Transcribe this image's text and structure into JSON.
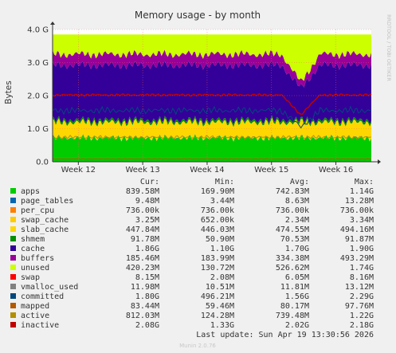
{
  "chart_data": {
    "type": "area",
    "title": "Memory usage - by month",
    "ylabel": "Bytes",
    "watermark": "RRDTOOL / TOBI OETIKER",
    "footer": "Munin 2.0.76",
    "last_update": "Last update: Sun Apr 19 13:30:56 2026",
    "ylim": [
      0,
      4.0
    ],
    "yunit": "G",
    "yticks": [
      {
        "value": 0.0,
        "label": "0.0"
      },
      {
        "value": 1.0,
        "label": "1.0 G"
      },
      {
        "value": 2.0,
        "label": "2.0 G"
      },
      {
        "value": 3.0,
        "label": "3.0 G"
      },
      {
        "value": 4.0,
        "label": "4.0 G"
      }
    ],
    "x_range": [
      11.6,
      16.55
    ],
    "xticks": [
      {
        "value": 12,
        "label": "Week 12"
      },
      {
        "value": 13,
        "label": "Week 13"
      },
      {
        "value": 14,
        "label": "Week 14"
      },
      {
        "value": 15,
        "label": "Week 15"
      },
      {
        "value": 16,
        "label": "Week 16"
      }
    ],
    "column_headers": [
      "Cur:",
      "Min:",
      "Avg:",
      "Max:"
    ],
    "series": [
      {
        "name": "apps",
        "color": "#00cc00",
        "cur": "839.58M",
        "min": "169.90M",
        "avg": "742.83M",
        "max": "1.14G"
      },
      {
        "name": "page_tables",
        "color": "#0066b3",
        "cur": "9.48M",
        "min": "3.44M",
        "avg": "8.63M",
        "max": "13.28M"
      },
      {
        "name": "per_cpu",
        "color": "#ff8000",
        "cur": "736.00k",
        "min": "736.00k",
        "avg": "736.00k",
        "max": "736.00k"
      },
      {
        "name": "swap_cache",
        "color": "#ffcc00",
        "cur": "3.25M",
        "min": "652.00k",
        "avg": "2.34M",
        "max": "3.34M"
      },
      {
        "name": "slab_cache",
        "color": "#ffd700",
        "cur": "447.84M",
        "min": "446.03M",
        "avg": "474.55M",
        "max": "494.16M"
      },
      {
        "name": "shmem",
        "color": "#008f00",
        "cur": "91.78M",
        "min": "50.90M",
        "avg": "70.53M",
        "max": "91.87M"
      },
      {
        "name": "cache",
        "color": "#330099",
        "cur": "1.86G",
        "min": "1.10G",
        "avg": "1.70G",
        "max": "1.90G"
      },
      {
        "name": "buffers",
        "color": "#990099",
        "cur": "185.46M",
        "min": "183.99M",
        "avg": "334.38M",
        "max": "493.29M"
      },
      {
        "name": "unused",
        "color": "#ccff00",
        "cur": "420.23M",
        "min": "130.72M",
        "avg": "526.62M",
        "max": "1.74G"
      },
      {
        "name": "swap",
        "color": "#ff0000",
        "cur": "8.15M",
        "min": "2.08M",
        "avg": "6.05M",
        "max": "8.16M"
      },
      {
        "name": "vmalloc_used",
        "color": "#808080",
        "cur": "11.98M",
        "min": "10.51M",
        "avg": "11.81M",
        "max": "13.12M"
      },
      {
        "name": "committed",
        "color": "#00487d",
        "cur": "1.80G",
        "min": "496.21M",
        "avg": "1.56G",
        "max": "2.29G"
      },
      {
        "name": "mapped",
        "color": "#b35a00",
        "cur": "83.44M",
        "min": "59.46M",
        "avg": "80.17M",
        "max": "97.76M"
      },
      {
        "name": "active",
        "color": "#b38f00",
        "cur": "812.03M",
        "min": "124.28M",
        "avg": "739.48M",
        "max": "1.22G"
      },
      {
        "name": "inactive",
        "color": "#bf0000",
        "cur": "2.08G",
        "min": "1.33G",
        "avg": "2.02G",
        "max": "2.18G"
      }
    ]
  }
}
